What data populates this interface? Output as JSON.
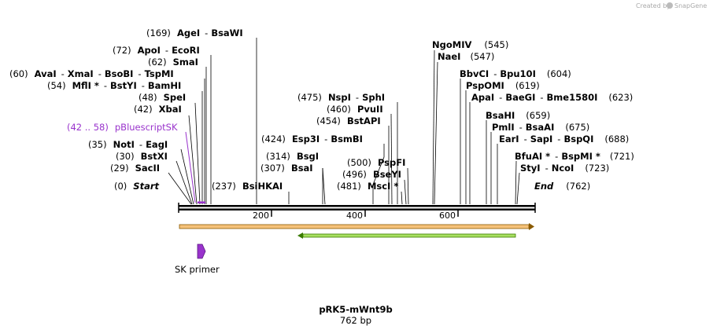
{
  "credit": {
    "text": "Created by",
    "brand": "SnapGene"
  },
  "title": "pRK5-mWnt9b",
  "subtitle": "762 bp",
  "start": {
    "pos": "(0)",
    "label": "Start"
  },
  "end": {
    "label": "End",
    "pos": "(762)"
  },
  "ticks": [
    "200",
    "400",
    "600"
  ],
  "feature_pbluescript": {
    "pos": "(42 .. 58)",
    "label": "pBluescriptSK"
  },
  "primer": {
    "label": "SK primer"
  },
  "colors": {
    "purple": "#9933cc",
    "orf_orange": "#f5a623",
    "orf_green": "#55cc00"
  },
  "sites_left": [
    {
      "pos": "(169)",
      "names": [
        "AgeI",
        "BsaWI"
      ]
    },
    {
      "pos": "(72)",
      "names": [
        "ApoI",
        "EcoRI"
      ]
    },
    {
      "pos": "(62)",
      "names": [
        "SmaI"
      ]
    },
    {
      "pos": "(60)",
      "names": [
        "AvaI",
        "XmaI",
        "BsoBI",
        "TspMI"
      ]
    },
    {
      "pos": "(54)",
      "names": [
        "MflI *",
        "BstYI",
        "BamHI"
      ]
    },
    {
      "pos": "(48)",
      "names": [
        "SpeI"
      ]
    },
    {
      "pos": "(42)",
      "names": [
        "XbaI"
      ]
    },
    {
      "pos": "(35)",
      "names": [
        "NotI",
        "EagI"
      ]
    },
    {
      "pos": "(30)",
      "names": [
        "BstXI"
      ]
    },
    {
      "pos": "(29)",
      "names": [
        "SacII"
      ]
    },
    {
      "pos": "(237)",
      "names": [
        "BsiHKAI"
      ]
    }
  ],
  "sites_middle": [
    {
      "pos": "(475)",
      "names": [
        "NspI",
        "SphI"
      ]
    },
    {
      "pos": "(460)",
      "names": [
        "PvuII"
      ]
    },
    {
      "pos": "(454)",
      "names": [
        "BstAPI"
      ]
    },
    {
      "pos": "(424)",
      "names": [
        "Esp3I",
        "BsmBI"
      ]
    },
    {
      "pos": "(314)",
      "names": [
        "BsgI"
      ]
    },
    {
      "pos": "(307)",
      "names": [
        "BsaI"
      ]
    },
    {
      "pos": "(500)",
      "names": [
        "PspFI"
      ]
    },
    {
      "pos": "(496)",
      "names": [
        "BseYI"
      ]
    },
    {
      "pos": "(481)",
      "names": [
        "MscI *"
      ]
    }
  ],
  "sites_right": [
    {
      "pos": "(545)",
      "names": [
        "NgoMIV"
      ]
    },
    {
      "pos": "(547)",
      "names": [
        "NaeI"
      ]
    },
    {
      "pos": "(604)",
      "names": [
        "BbvCI",
        "Bpu10I"
      ]
    },
    {
      "pos": "(619)",
      "names": [
        "PspOMI"
      ]
    },
    {
      "pos": "(623)",
      "names": [
        "ApaI",
        "BaeGI",
        "Bme1580I"
      ]
    },
    {
      "pos": "(659)",
      "names": [
        "BsaHI"
      ]
    },
    {
      "pos": "(675)",
      "names": [
        "PmlI",
        "BsaAI"
      ]
    },
    {
      "pos": "(688)",
      "names": [
        "EarI",
        "SapI",
        "BspQI"
      ]
    },
    {
      "pos": "(721)",
      "names": [
        "BfuAI *",
        "BspMI *"
      ]
    },
    {
      "pos": "(723)",
      "names": [
        "StyI",
        "NcoI"
      ]
    }
  ]
}
